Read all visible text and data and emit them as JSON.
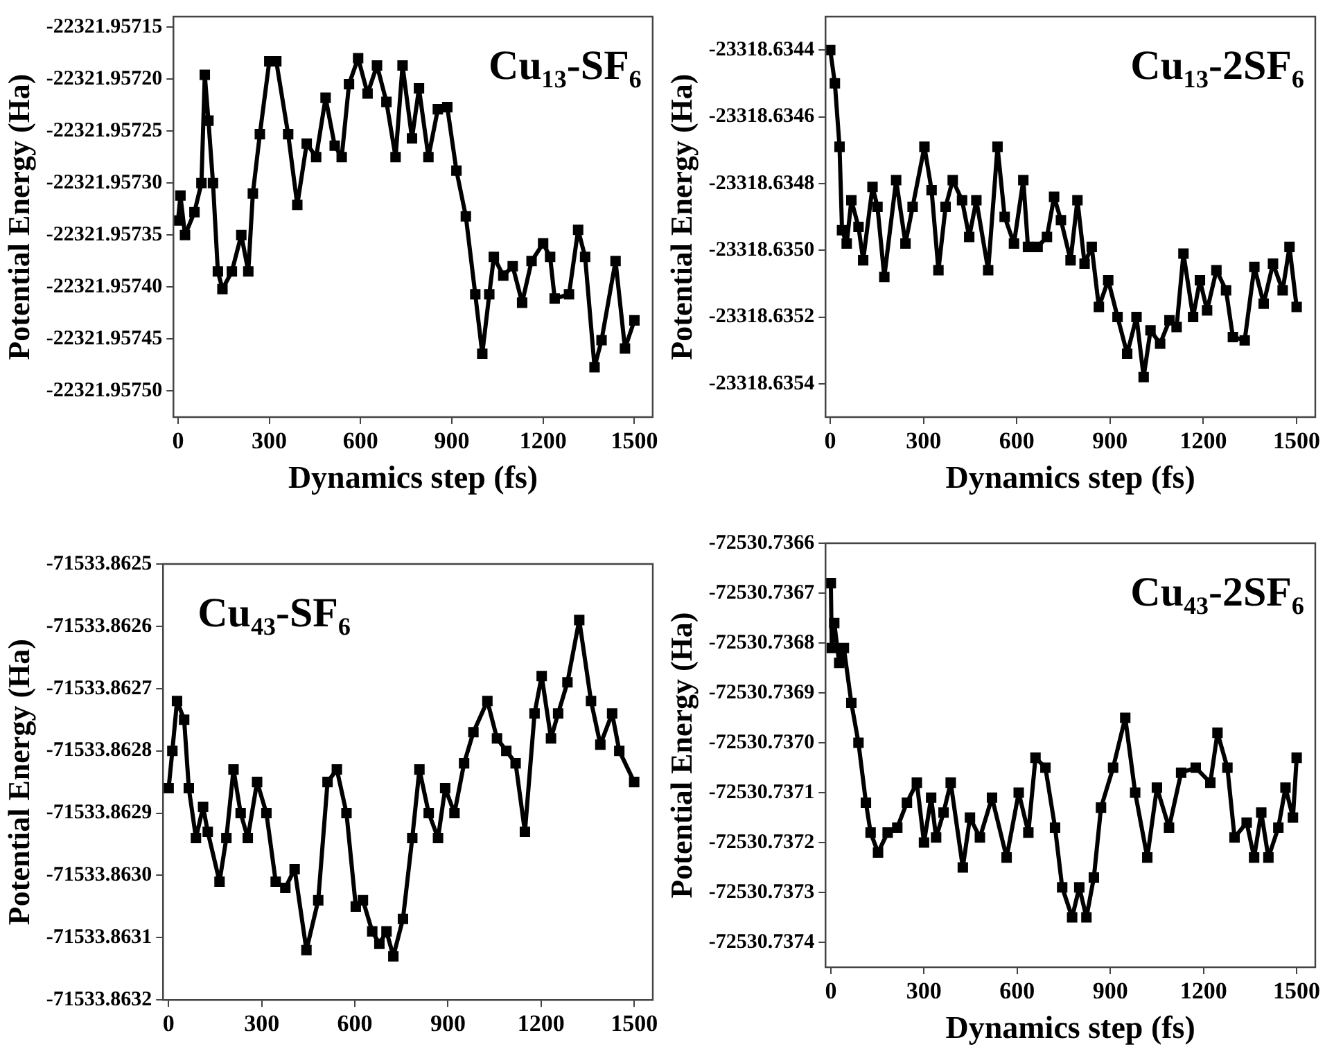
{
  "chart_data": [
    {
      "type": "line",
      "title": "Cu₁₃-SF₆",
      "xlabel": "Dynamics step (fs)",
      "ylabel": "Potential Energy (Ha)",
      "marker": "square",
      "line_style": "solid",
      "grid": false,
      "legend": false,
      "xlim": [
        -15,
        1560
      ],
      "xticks": [
        0,
        300,
        600,
        900,
        1200,
        1500
      ],
      "ylim": [
        -22321.957525,
        -22321.95714
      ],
      "yticks": [
        -22321.95715,
        {
          "value": -22321.9572,
          "label": "-22321.95720"
        },
        -22321.95725,
        {
          "value": -22321.9573,
          "label": "-22321.95730"
        },
        -22321.95735,
        {
          "value": -22321.9574,
          "label": "-22321.95740"
        },
        -22321.95745,
        {
          "value": -22321.9575,
          "label": "-22321.95750"
        }
      ],
      "x": [
        0,
        8,
        23,
        54,
        77,
        88,
        100,
        115,
        131,
        146,
        177,
        208,
        231,
        246,
        269,
        300,
        323,
        362,
        392,
        423,
        454,
        485,
        515,
        538,
        562,
        592,
        623,
        654,
        685,
        715,
        738,
        769,
        792,
        823,
        854,
        885,
        915,
        946,
        977,
        1000,
        1023,
        1038,
        1069,
        1100,
        1131,
        1162,
        1200,
        1223,
        1238,
        1285,
        1315,
        1338,
        1369,
        1392,
        1438,
        1469,
        1500
      ],
      "series": [
        {
          "color": "#000000",
          "values": [
            -22321.957336,
            -22321.957312,
            -22321.95735,
            -22321.957328,
            -22321.9573,
            -22321.957196,
            -22321.95724,
            -22321.9573,
            -22321.957385,
            -22321.957402,
            -22321.957385,
            -22321.95735,
            -22321.957385,
            -22321.95731,
            -22321.957253,
            -22321.957183,
            -22321.957183,
            -22321.957253,
            -22321.957321,
            -22321.957262,
            -22321.957275,
            -22321.957218,
            -22321.957264,
            -22321.957275,
            -22321.957205,
            -22321.95718,
            -22321.957214,
            -22321.957187,
            -22321.957222,
            -22321.957275,
            -22321.957187,
            -22321.957257,
            -22321.957209,
            -22321.957275,
            -22321.957229,
            -22321.957227,
            -22321.957288,
            -22321.957332,
            -22321.957407,
            -22321.957464,
            -22321.957407,
            -22321.957371,
            -22321.957389,
            -22321.95738,
            -22321.957415,
            -22321.957375,
            -22321.957358,
            -22321.957371,
            -22321.957411,
            -22321.957407,
            -22321.957345,
            -22321.957371,
            -22321.957477,
            -22321.957451,
            -22321.957375,
            -22321.957459,
            -22321.957432
          ]
        }
      ]
    },
    {
      "type": "line",
      "title": "Cu₁₃-2SF₆",
      "xlabel": "Dynamics step (fs)",
      "ylabel": "Potential Energy (Ha)",
      "marker": "square",
      "line_style": "solid",
      "grid": false,
      "legend": false,
      "xlim": [
        -15,
        1560
      ],
      "xticks": [
        0,
        300,
        600,
        900,
        1200,
        1500
      ],
      "ylim": [
        -23318.6355,
        -23318.6343
      ],
      "yticks": [
        -23318.6344,
        -23318.6346,
        -23318.6348,
        {
          "value": -23318.635,
          "label": "-23318.6350"
        },
        -23318.6352,
        -23318.6354
      ],
      "x": [
        0,
        15,
        30,
        38,
        53,
        68,
        91,
        106,
        136,
        152,
        174,
        212,
        242,
        265,
        303,
        326,
        348,
        371,
        394,
        424,
        447,
        470,
        508,
        538,
        561,
        591,
        621,
        636,
        667,
        697,
        720,
        742,
        773,
        795,
        818,
        841,
        864,
        894,
        924,
        955,
        985,
        1008,
        1030,
        1061,
        1091,
        1114,
        1136,
        1167,
        1189,
        1212,
        1242,
        1273,
        1295,
        1333,
        1364,
        1394,
        1424,
        1455,
        1477,
        1500
      ],
      "series": [
        {
          "color": "#000000",
          "values": [
            -23318.6344,
            -23318.6345,
            -23318.63469,
            -23318.63494,
            -23318.63498,
            -23318.63485,
            -23318.63493,
            -23318.63503,
            -23318.63481,
            -23318.63487,
            -23318.63508,
            -23318.63479,
            -23318.63498,
            -23318.63487,
            -23318.63469,
            -23318.63482,
            -23318.63506,
            -23318.63487,
            -23318.63479,
            -23318.63485,
            -23318.63496,
            -23318.63485,
            -23318.63506,
            -23318.63469,
            -23318.6349,
            -23318.63498,
            -23318.63479,
            -23318.63499,
            -23318.63499,
            -23318.63496,
            -23318.63484,
            -23318.63491,
            -23318.63503,
            -23318.63485,
            -23318.63504,
            -23318.63499,
            -23318.63517,
            -23318.63509,
            -23318.6352,
            -23318.63531,
            -23318.6352,
            -23318.63538,
            -23318.63524,
            -23318.63528,
            -23318.63521,
            -23318.63523,
            -23318.63501,
            -23318.6352,
            -23318.63509,
            -23318.63518,
            -23318.63506,
            -23318.63512,
            -23318.63526,
            -23318.63527,
            -23318.63505,
            -23318.63516,
            -23318.63504,
            -23318.63512,
            -23318.63499,
            -23318.63517
          ]
        }
      ]
    },
    {
      "type": "line",
      "title": "Cu₄₃-SF₆",
      "ylabel": "Potential Energy (Ha)",
      "marker": "square",
      "line_style": "solid",
      "grid": false,
      "legend": false,
      "xlim": [
        -18,
        1560
      ],
      "xticks": [
        0,
        300,
        600,
        900,
        1200,
        1500
      ],
      "ylim": [
        -71533.8632,
        -71533.8625
      ],
      "yticks": [
        -71533.8625,
        -71533.8626,
        -71533.8627,
        -71533.8628,
        -71533.8629,
        {
          "value": -71533.863,
          "label": "-71533.8630"
        },
        -71533.8631,
        -71533.8632
      ],
      "x": [
        0,
        12,
        27,
        50,
        65,
        88,
        111,
        126,
        164,
        186,
        209,
        232,
        255,
        285,
        315,
        345,
        376,
        406,
        444,
        482,
        512,
        542,
        573,
        603,
        626,
        656,
        679,
        702,
        724,
        755,
        785,
        808,
        838,
        868,
        891,
        921,
        952,
        982,
        1027,
        1058,
        1088,
        1118,
        1148,
        1179,
        1202,
        1232,
        1255,
        1285,
        1323,
        1361,
        1391,
        1429,
        1452,
        1500
      ],
      "series": [
        {
          "color": "#000000",
          "values": [
            -71533.86286,
            -71533.8628,
            -71533.86272,
            -71533.86275,
            -71533.86286,
            -71533.86294,
            -71533.86289,
            -71533.86293,
            -71533.86301,
            -71533.86294,
            -71533.86283,
            -71533.8629,
            -71533.86294,
            -71533.86285,
            -71533.8629,
            -71533.86301,
            -71533.86302,
            -71533.86299,
            -71533.86312,
            -71533.86304,
            -71533.86285,
            -71533.86283,
            -71533.8629,
            -71533.86305,
            -71533.86304,
            -71533.86309,
            -71533.86311,
            -71533.86309,
            -71533.86313,
            -71533.86307,
            -71533.86294,
            -71533.86283,
            -71533.8629,
            -71533.86294,
            -71533.86286,
            -71533.8629,
            -71533.86282,
            -71533.86277,
            -71533.86272,
            -71533.86278,
            -71533.8628,
            -71533.86282,
            -71533.86293,
            -71533.86274,
            -71533.86268,
            -71533.86278,
            -71533.86274,
            -71533.86269,
            -71533.86259,
            -71533.86272,
            -71533.86279,
            -71533.86274,
            -71533.8628,
            -71533.86285
          ]
        }
      ]
    },
    {
      "type": "line",
      "title": "Cu₄₃-2SF₆",
      "xlabel": "Dynamics step (fs)",
      "ylabel": "Potential Energy (Ha)",
      "marker": "square",
      "line_style": "solid",
      "grid": false,
      "legend": false,
      "xlim": [
        -17,
        1560
      ],
      "xticks": [
        0,
        300,
        600,
        900,
        1200,
        1500
      ],
      "ylim": [
        -72530.73745,
        -72530.7366
      ],
      "yticks": [
        -72530.7366,
        -72530.7367,
        -72530.7368,
        -72530.7369,
        {
          "value": -72530.737,
          "label": "-72530.7370"
        },
        -72530.7371,
        -72530.7372,
        -72530.7373,
        -72530.7374
      ],
      "x": [
        0,
        3,
        11,
        27,
        42,
        66,
        89,
        113,
        128,
        152,
        183,
        214,
        245,
        277,
        300,
        323,
        339,
        363,
        386,
        425,
        448,
        480,
        519,
        566,
        605,
        636,
        659,
        691,
        722,
        745,
        777,
        800,
        823,
        847,
        870,
        909,
        948,
        980,
        1019,
        1050,
        1089,
        1128,
        1175,
        1222,
        1245,
        1277,
        1300,
        1339,
        1363,
        1386,
        1409,
        1441,
        1464,
        1488,
        1500
      ],
      "series": [
        {
          "color": "#000000",
          "values": [
            -72530.73668,
            -72530.73681,
            -72530.73676,
            -72530.73684,
            -72530.73681,
            -72530.73692,
            -72530.737,
            -72530.73712,
            -72530.73718,
            -72530.73722,
            -72530.73718,
            -72530.73717,
            -72530.73712,
            -72530.73708,
            -72530.7372,
            -72530.73711,
            -72530.73719,
            -72530.73714,
            -72530.73708,
            -72530.73725,
            -72530.73715,
            -72530.73719,
            -72530.73711,
            -72530.73723,
            -72530.7371,
            -72530.73718,
            -72530.73703,
            -72530.73705,
            -72530.73717,
            -72530.73729,
            -72530.73735,
            -72530.73729,
            -72530.73735,
            -72530.73727,
            -72530.73713,
            -72530.73705,
            -72530.73695,
            -72530.7371,
            -72530.73723,
            -72530.73709,
            -72530.73717,
            -72530.73706,
            -72530.73705,
            -72530.73708,
            -72530.73698,
            -72530.73705,
            -72530.73719,
            -72530.73716,
            -72530.73723,
            -72530.73714,
            -72530.73723,
            -72530.73717,
            -72530.73709,
            -72530.73715,
            -72530.73703
          ]
        }
      ]
    }
  ]
}
